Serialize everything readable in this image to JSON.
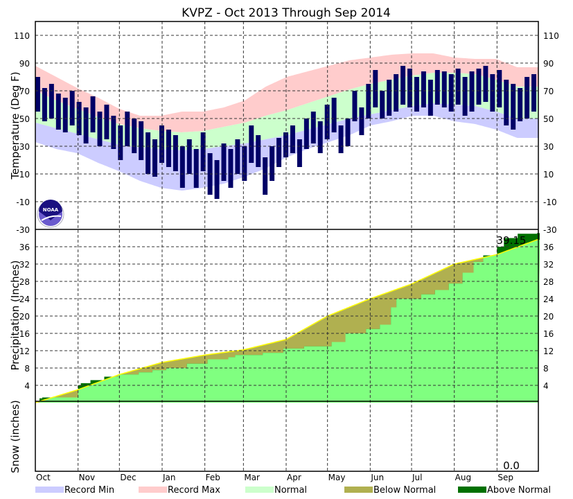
{
  "chart_data": [
    {
      "type": "bar",
      "title": "KVPZ - Oct 2013 Through Sep 2014",
      "ylabel": "Temperature (Deg F)",
      "ylim": [
        -30,
        120
      ],
      "yticks": [
        110,
        90,
        70,
        50,
        30,
        10,
        -10,
        -30
      ],
      "x_months": [
        "Oct",
        "Nov",
        "Dec",
        "Jan",
        "Feb",
        "Mar",
        "Apr",
        "May",
        "Jun",
        "Jul",
        "Aug",
        "Sep"
      ],
      "month_start_days": [
        0,
        31,
        61,
        92,
        123,
        151,
        182,
        212,
        243,
        273,
        304,
        335
      ],
      "days_total": 365,
      "climo_step_days": 15.2,
      "record_max": [
        88,
        80,
        72,
        65,
        57,
        52,
        52,
        55,
        55,
        58,
        63,
        73,
        80,
        84,
        88,
        92,
        94,
        96,
        97,
        97,
        94,
        93,
        93,
        87
      ],
      "normal_high": [
        70,
        63,
        57,
        51,
        46,
        43,
        41,
        40,
        41,
        44,
        47,
        52,
        56,
        61,
        66,
        71,
        75,
        78,
        81,
        83,
        83,
        82,
        78,
        73
      ],
      "normal_low": [
        47,
        43,
        39,
        35,
        31,
        29,
        28,
        27,
        28,
        30,
        32,
        35,
        38,
        42,
        46,
        50,
        53,
        56,
        59,
        61,
        60,
        59,
        55,
        50
      ],
      "record_min": [
        33,
        28,
        25,
        18,
        12,
        5,
        0,
        -2,
        0,
        3,
        8,
        14,
        22,
        28,
        33,
        38,
        45,
        48,
        52,
        52,
        48,
        46,
        42,
        36
      ],
      "actual_step_days": 5,
      "actual_high": [
        80,
        72,
        75,
        68,
        65,
        70,
        62,
        58,
        66,
        55,
        60,
        52,
        45,
        55,
        50,
        48,
        40,
        35,
        45,
        42,
        38,
        30,
        35,
        28,
        40,
        25,
        20,
        32,
        28,
        35,
        30,
        45,
        38,
        22,
        30,
        36,
        40,
        45,
        35,
        50,
        55,
        48,
        60,
        65,
        45,
        50,
        70,
        58,
        75,
        85,
        70,
        78,
        82,
        88,
        86,
        80,
        84,
        78,
        85,
        84,
        82,
        86,
        80,
        84,
        86,
        88,
        82,
        85,
        78,
        75,
        72,
        80,
        82
      ],
      "actual_low": [
        55,
        48,
        50,
        42,
        40,
        45,
        38,
        32,
        40,
        30,
        35,
        28,
        20,
        30,
        25,
        20,
        10,
        8,
        18,
        15,
        12,
        0,
        10,
        0,
        12,
        -5,
        -8,
        5,
        0,
        10,
        5,
        18,
        15,
        -5,
        5,
        15,
        22,
        25,
        15,
        28,
        32,
        25,
        35,
        40,
        25,
        30,
        48,
        38,
        50,
        58,
        50,
        52,
        55,
        60,
        58,
        55,
        58,
        52,
        60,
        58,
        55,
        60,
        52,
        55,
        60,
        62,
        55,
        58,
        45,
        42,
        48,
        50,
        55
      ]
    },
    {
      "type": "area",
      "ylabel": "Precipitation (Inches)",
      "ylim": [
        0,
        40
      ],
      "yticks": [
        4,
        8,
        12,
        16,
        20,
        24,
        28,
        32,
        36
      ],
      "total_label": "39.15",
      "normal": {
        "days": [
          0,
          31,
          61,
          92,
          123,
          151,
          182,
          212,
          243,
          273,
          304,
          335,
          364
        ],
        "values": [
          0,
          3,
          6.5,
          9.3,
          11,
          12.2,
          14.6,
          20,
          24,
          27.4,
          32,
          34.2,
          37.6
        ]
      },
      "actual": {
        "days": [
          0,
          3,
          5,
          31,
          33,
          40,
          50,
          60,
          75,
          85,
          95,
          110,
          125,
          140,
          145,
          165,
          180,
          195,
          215,
          225,
          240,
          250,
          258,
          262,
          280,
          290,
          300,
          310,
          318,
          325,
          335,
          340,
          350,
          364
        ],
        "values": [
          0,
          1.0,
          1.2,
          4.0,
          4.5,
          5.2,
          6.0,
          6.5,
          7.0,
          7.5,
          8.0,
          9.0,
          10.0,
          10.5,
          11.0,
          11.5,
          12.5,
          13.0,
          14.0,
          16.0,
          17.0,
          18.0,
          22.0,
          24.0,
          25.0,
          26.0,
          27.5,
          30.0,
          32.5,
          34.0,
          36.0,
          38.0,
          39.0,
          39.15
        ]
      }
    },
    {
      "type": "area",
      "ylabel": "Snow (inches)",
      "total_label": "0.0"
    }
  ],
  "legend": [
    {
      "label": "Record Min",
      "color": "#ccccff"
    },
    {
      "label": "Record Max",
      "color": "#ffcccc"
    },
    {
      "label": "Normal",
      "color": "#ccffcc"
    },
    {
      "label": "Below Normal",
      "color": "#b0b050"
    },
    {
      "label": "Above Normal",
      "color": "#007000"
    }
  ],
  "colors": {
    "actual": "#000066",
    "precip_fill": "#80ff80",
    "normal_line": "#ffff00",
    "logo": "#2a1fa0"
  },
  "logo_text": "NOAA"
}
